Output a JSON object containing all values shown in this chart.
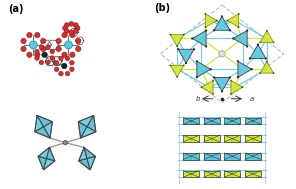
{
  "label_a": "(a)",
  "label_b": "(b)",
  "bg_color": "#ffffff",
  "cyan": "#5bc8e0",
  "cyan2": "#4ab8d0",
  "yellow_green": "#d4e833",
  "yg2": "#c8e020",
  "red": "#cc3333",
  "dark_gray": "#444444",
  "light_gray": "#999999",
  "pale_gray": "#cccccc",
  "mol_bg": "#ffffff",
  "network_line_cyan": "#5bc8e0",
  "network_line_yg": "#c8e020",
  "unit_cell_gray": "#cccccc"
}
